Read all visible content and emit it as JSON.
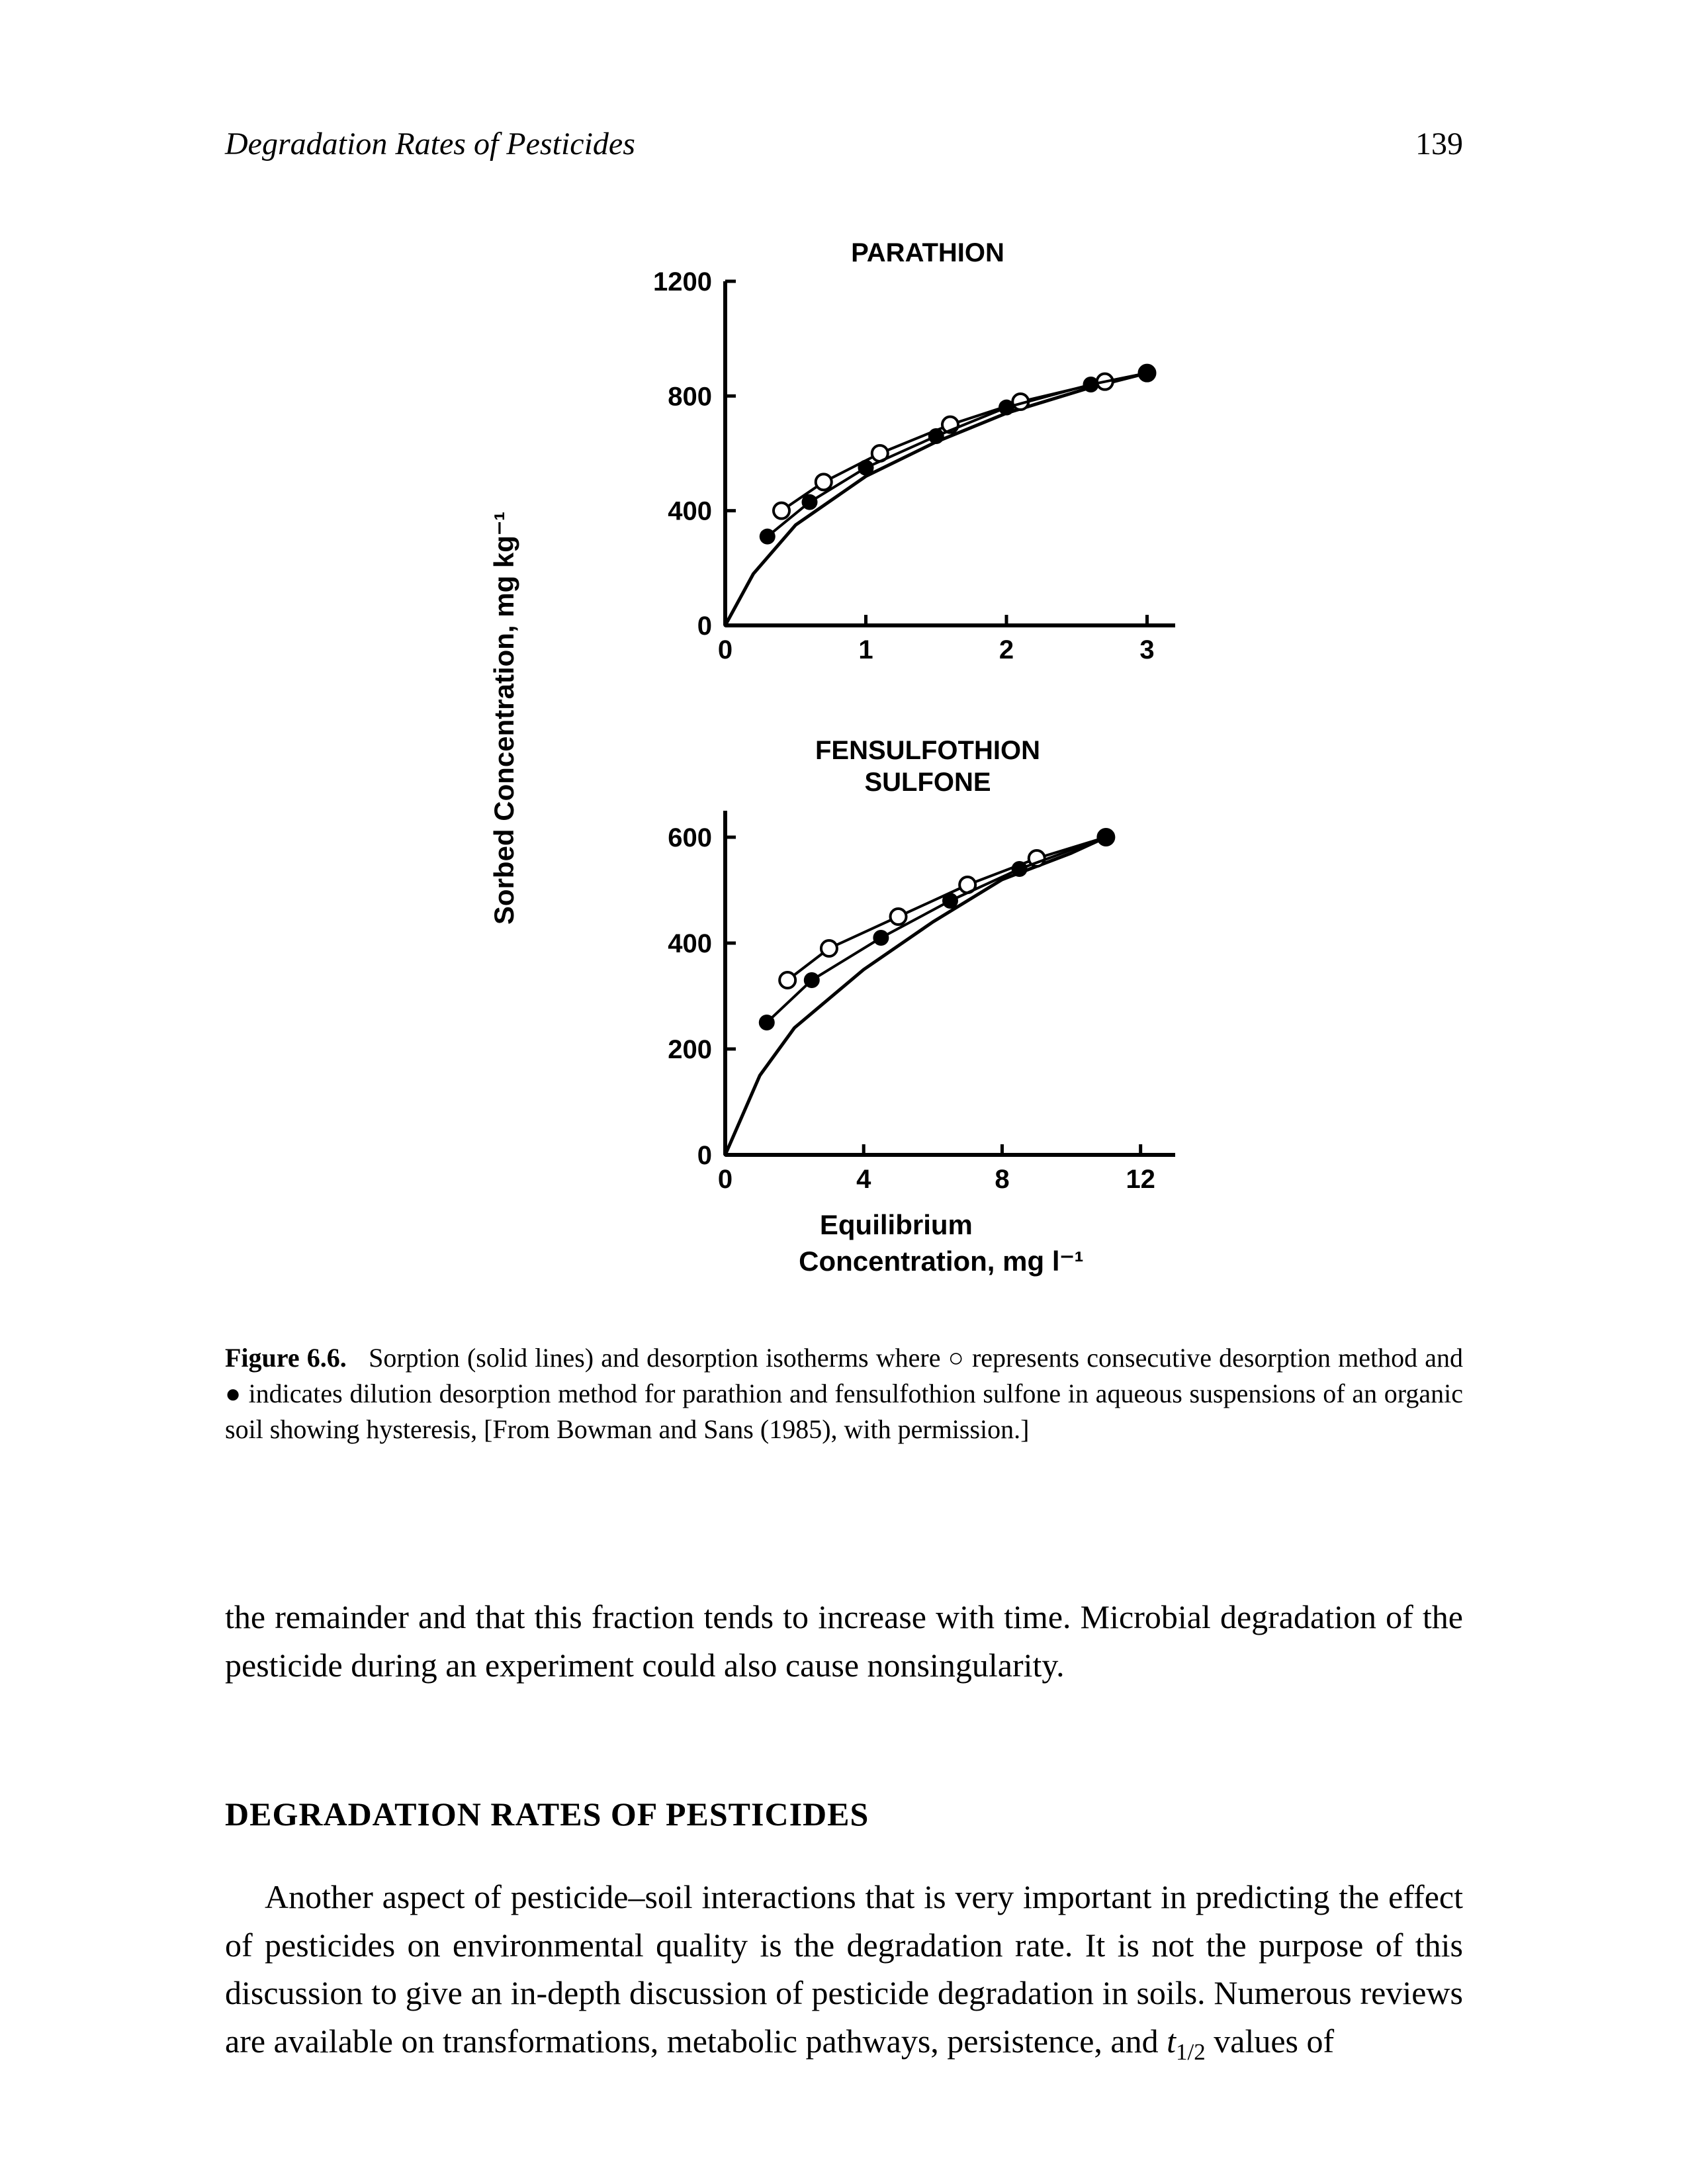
{
  "header": {
    "running_title": "Degradation Rates of Pesticides",
    "page_number": "139"
  },
  "figure": {
    "y_axis_label": "Sorbed Concentration, mg kg⁻¹",
    "x_axis_label_line1": "Equilibrium",
    "x_axis_label_line2": "Concentration, mg  l⁻¹",
    "panels": [
      {
        "title_lines": [
          "PARATHION"
        ],
        "y_ticks": [
          0,
          400,
          800,
          1200
        ],
        "x_ticks": [
          0,
          1,
          2,
          3
        ],
        "xlim": [
          0,
          3.2
        ],
        "ylim": [
          0,
          1200
        ],
        "series": {
          "sorption_solid": {
            "marker": "none",
            "line": "solid",
            "line_width": 5,
            "color": "#000000",
            "points": [
              [
                0,
                0
              ],
              [
                0.2,
                180
              ],
              [
                0.5,
                350
              ],
              [
                1.0,
                520
              ],
              [
                1.5,
                640
              ],
              [
                2.0,
                740
              ],
              [
                2.6,
                830
              ],
              [
                3.0,
                880
              ]
            ]
          },
          "desorption_open": {
            "marker": "open-circle",
            "marker_size": 12,
            "line": "solid",
            "line_width": 4,
            "color": "#000000",
            "points": [
              [
                0.4,
                400
              ],
              [
                0.7,
                500
              ],
              [
                1.1,
                600
              ],
              [
                1.6,
                700
              ],
              [
                2.1,
                780
              ],
              [
                2.7,
                850
              ],
              [
                3.0,
                880
              ]
            ]
          },
          "desorption_filled": {
            "marker": "filled-circle",
            "marker_size": 12,
            "line": "solid",
            "line_width": 4,
            "color": "#000000",
            "points": [
              [
                0.3,
                310
              ],
              [
                0.6,
                430
              ],
              [
                1.0,
                550
              ],
              [
                1.5,
                660
              ],
              [
                2.0,
                760
              ],
              [
                2.6,
                840
              ],
              [
                3.0,
                880
              ]
            ]
          }
        }
      },
      {
        "title_lines": [
          "FENSULFOTHION",
          "SULFONE"
        ],
        "y_ticks": [
          0,
          200,
          400,
          600
        ],
        "x_ticks": [
          0,
          4,
          8,
          12
        ],
        "xlim": [
          0,
          13
        ],
        "ylim": [
          0,
          650
        ],
        "series": {
          "sorption_solid": {
            "marker": "none",
            "line": "solid",
            "line_width": 5,
            "color": "#000000",
            "points": [
              [
                0,
                0
              ],
              [
                1,
                150
              ],
              [
                2,
                240
              ],
              [
                4,
                350
              ],
              [
                6,
                440
              ],
              [
                8,
                520
              ],
              [
                10,
                570
              ],
              [
                11,
                600
              ]
            ]
          },
          "desorption_open": {
            "marker": "open-circle",
            "marker_size": 12,
            "line": "solid",
            "line_width": 4,
            "color": "#000000",
            "points": [
              [
                1.8,
                330
              ],
              [
                3,
                390
              ],
              [
                5,
                450
              ],
              [
                7,
                510
              ],
              [
                9,
                560
              ],
              [
                11,
                600
              ]
            ]
          },
          "desorption_filled": {
            "marker": "filled-circle",
            "marker_size": 12,
            "line": "solid",
            "line_width": 4,
            "color": "#000000",
            "points": [
              [
                1.2,
                250
              ],
              [
                2.5,
                330
              ],
              [
                4.5,
                410
              ],
              [
                6.5,
                480
              ],
              [
                8.5,
                540
              ],
              [
                11,
                600
              ]
            ]
          }
        }
      }
    ],
    "axis_line_width": 6,
    "tick_length": 16,
    "tick_width": 5,
    "font_family": "Arial, Helvetica, sans-serif",
    "tick_fontsize": 40,
    "title_fontsize": 40,
    "axis_label_fontsize": 42,
    "background_color": "#ffffff",
    "ink_color": "#000000"
  },
  "caption": {
    "fignum": "Figure 6.6.",
    "text": "Sorption (solid lines) and desorption isotherms where ○ represents consecutive desorption method and ● indicates dilution desorption method for parathion and fensulfothion sulfone in aqueous suspensions of an organic soil showing hysteresis, [From Bowman and Sans (1985), with permission.]"
  },
  "body_paragraph_1": "the remainder and that this fraction tends to increase with time. Microbial degradation of the pesticide during an experiment could also cause nonsingularity.",
  "section_heading": "DEGRADATION RATES OF PESTICIDES",
  "body_paragraph_2_pre": "Another aspect of pesticide–soil interactions that is very important in predicting the effect of pesticides on environmental quality is the degradation rate. It is not the purpose of this discussion to give an in-depth discussion of pesticide degradation in soils. Numerous reviews are available on transformations, metabolic pathways, persistence, and ",
  "body_paragraph_2_var": "t",
  "body_paragraph_2_sub": "1/2",
  "body_paragraph_2_post": " values of"
}
